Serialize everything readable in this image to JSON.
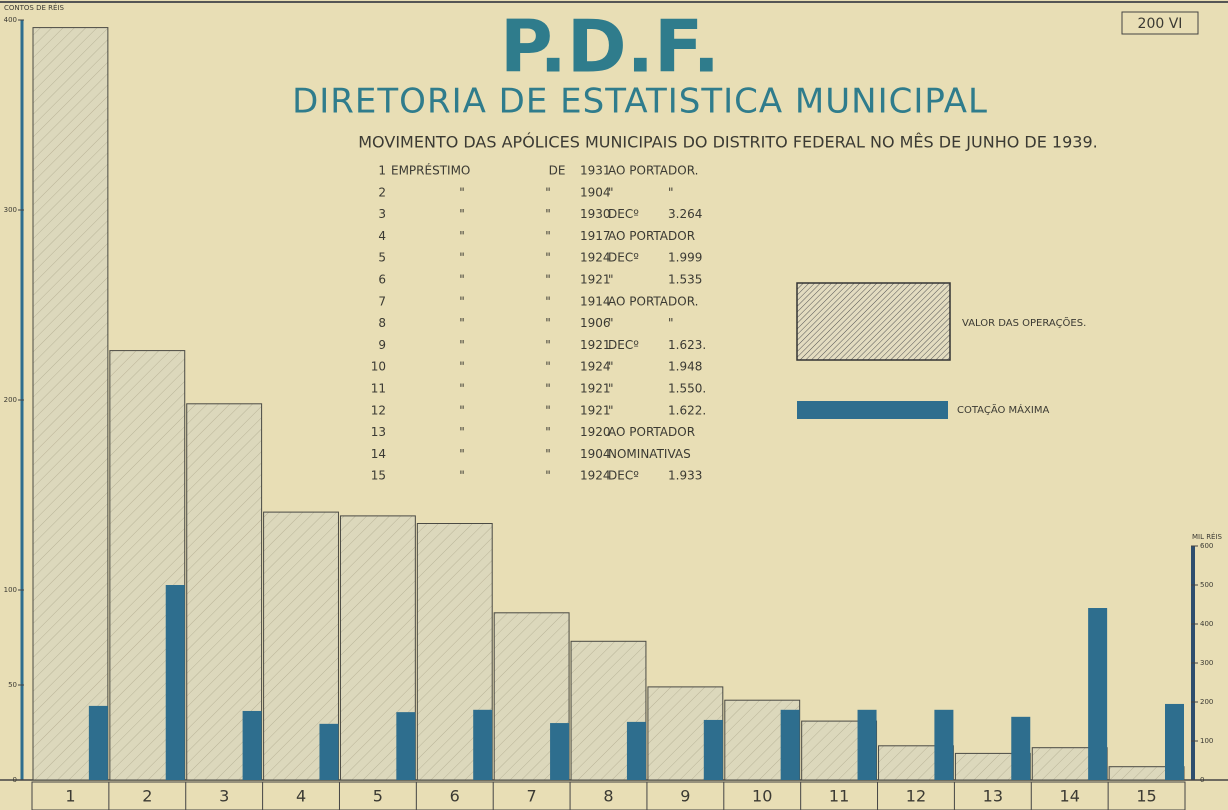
{
  "corner_label": "200 VI",
  "chart_data": {
    "type": "bar",
    "title": "P.D.F.",
    "subtitle": "DIRETORIA DE ESTATISTICA MUNICIPAL",
    "caption": "MOVIMENTO DAS APÓLICES MUNICIPAIS DO DISTRITO FEDERAL NO MÊS DE JUNHO DE 1939.",
    "y_label": "CONTOS DE RÉIS",
    "y2_label": "MIL RÉIS",
    "categories": [
      "1",
      "2",
      "3",
      "4",
      "5",
      "6",
      "7",
      "8",
      "9",
      "10",
      "11",
      "12",
      "13",
      "14",
      "15"
    ],
    "series": [
      {
        "name": "VALOR DAS OPERAÇÕES.",
        "color": "#dcd8bc",
        "hatch": true,
        "values": [
          396,
          226,
          198,
          141,
          139,
          135,
          88,
          73,
          49,
          42,
          31,
          18,
          14,
          17,
          7
        ]
      },
      {
        "name": "COTAÇÃO MÁXIMA",
        "color": "#2e6e8e",
        "axis": "y2",
        "values": [
          190,
          500,
          177,
          144,
          174,
          180,
          146,
          149,
          154,
          180,
          180,
          180,
          162,
          441,
          195
        ]
      }
    ],
    "ylim": [
      0,
      400
    ],
    "yticks": [
      0,
      50,
      100,
      200,
      300,
      400
    ],
    "y2lim": [
      0,
      600
    ],
    "y2ticks": [
      0,
      100,
      200,
      300,
      400,
      500,
      600
    ],
    "annotations": [
      [
        "1",
        "EMPRÉSTIMO",
        "DE",
        "1931",
        "AO PORTADOR."
      ],
      [
        "2",
        "\"",
        "\"",
        "1904",
        "\"",
        "\""
      ],
      [
        "3",
        "\"",
        "\"",
        "1930",
        "DECº",
        "3.264"
      ],
      [
        "4",
        "\"",
        "\"",
        "1917",
        "AO PORTADOR"
      ],
      [
        "5",
        "\"",
        "\"",
        "1924",
        "DECº",
        "1.999"
      ],
      [
        "6",
        "\"",
        "\"",
        "1921",
        "\"",
        "1.535"
      ],
      [
        "7",
        "\"",
        "\"",
        "1914",
        "AO PORTADOR."
      ],
      [
        "8",
        "\"",
        "\"",
        "1906",
        "\"",
        "\""
      ],
      [
        "9",
        "\"",
        "\"",
        "1921",
        "DECº",
        "1.623."
      ],
      [
        "10",
        "\"",
        "\"",
        "1924",
        "\"",
        "1.948"
      ],
      [
        "11",
        "\"",
        "\"",
        "1921",
        "\"",
        "1.550."
      ],
      [
        "12",
        "\"",
        "\"",
        "1921",
        "\"",
        "1.622."
      ],
      [
        "13",
        "\"",
        "\"",
        "1920",
        "AO PORTADOR"
      ],
      [
        "14",
        "\"",
        "\"",
        "1904",
        "NOMINATIVAS"
      ],
      [
        "15",
        "\"",
        "\"",
        "1924",
        "DECº",
        "1.933"
      ]
    ]
  }
}
